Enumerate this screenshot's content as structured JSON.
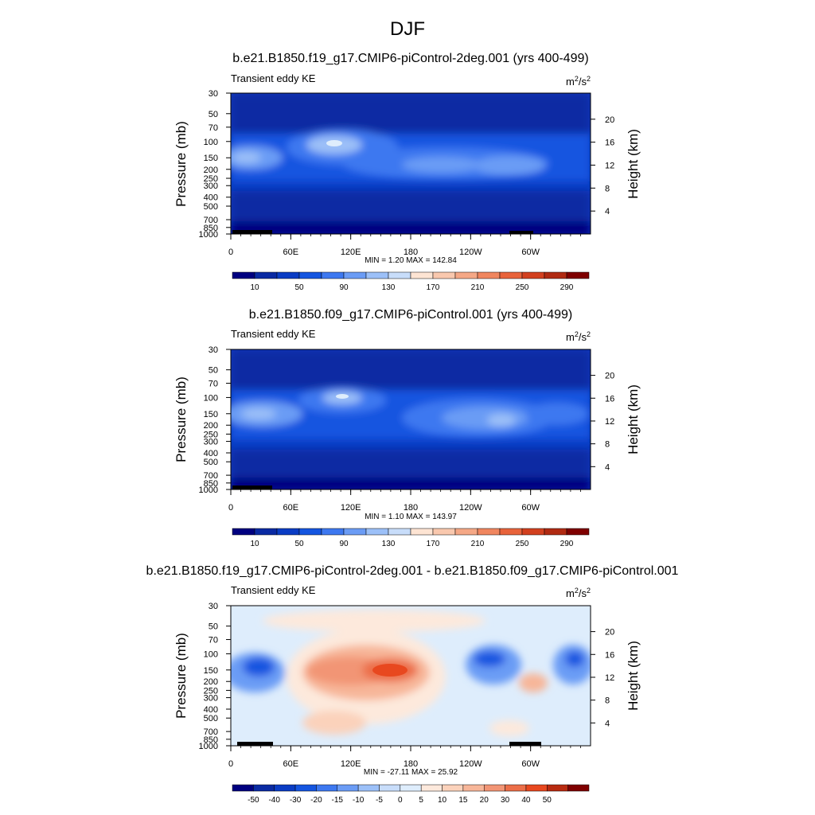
{
  "main_title": "DJF",
  "colors": {
    "abs_scale": [
      "#000080",
      "#0a2aa3",
      "#0a3cc4",
      "#1455e0",
      "#3d78f0",
      "#6b9cf5",
      "#9cc0f8",
      "#c8ddfa",
      "#fde4d3",
      "#f9c8ae",
      "#f5a886",
      "#f0865f",
      "#e8633b",
      "#d2401f",
      "#b02a12",
      "#7f0000"
    ],
    "diff_scale": [
      "#000080",
      "#0a2aa3",
      "#0a3cc4",
      "#1455e0",
      "#3d78f0",
      "#6b9cf5",
      "#9cc0f8",
      "#c8ddfa",
      "#deedfc",
      "#fde9dc",
      "#fbd2bb",
      "#f7b699",
      "#f29575",
      "#ec6e48",
      "#e8481f",
      "#b82a10",
      "#7f0000"
    ]
  },
  "chart_data": [
    {
      "type": "heatmap",
      "title": "b.e21.B1850.f19_g17.CMIP6-piControl-2deg.001 (yrs 400-499)",
      "left_label": "Transient eddy KE",
      "units": "m²/s²",
      "units_base": "m",
      "units_exp1": "2",
      "units_mid": "/s",
      "units_exp2": "2",
      "ylabel": "Pressure (mb)",
      "ylabel_right": "Height (km)",
      "x_ticks": [
        "0",
        "60E",
        "120E",
        "180",
        "120W",
        "60W"
      ],
      "y_ticks": [
        "30",
        "50",
        "70",
        "100",
        "150",
        "200",
        "250",
        "300",
        "400",
        "500",
        "700",
        "850",
        "1000"
      ],
      "y_right_ticks": [
        "20",
        "16",
        "12",
        "8",
        "4"
      ],
      "stats": "MIN =   1.20  MAX = 142.84",
      "colorbar_labels": [
        "10",
        "50",
        "90",
        "130",
        "170",
        "210",
        "250",
        "290"
      ]
    },
    {
      "type": "heatmap",
      "title": "b.e21.B1850.f09_g17.CMIP6-piControl.001 (yrs 400-499)",
      "left_label": "Transient eddy KE",
      "units": "m²/s²",
      "units_base": "m",
      "units_exp1": "2",
      "units_mid": "/s",
      "units_exp2": "2",
      "ylabel": "Pressure (mb)",
      "ylabel_right": "Height (km)",
      "x_ticks": [
        "0",
        "60E",
        "120E",
        "180",
        "120W",
        "60W"
      ],
      "y_ticks": [
        "30",
        "50",
        "70",
        "100",
        "150",
        "200",
        "250",
        "300",
        "400",
        "500",
        "700",
        "850",
        "1000"
      ],
      "y_right_ticks": [
        "20",
        "16",
        "12",
        "8",
        "4"
      ],
      "stats": "MIN =   1.10  MAX = 143.97",
      "colorbar_labels": [
        "10",
        "50",
        "90",
        "130",
        "170",
        "210",
        "250",
        "290"
      ]
    },
    {
      "type": "heatmap",
      "title": "b.e21.B1850.f19_g17.CMIP6-piControl-2deg.001 - b.e21.B1850.f09_g17.CMIP6-piControl.001",
      "left_label": "Transient eddy KE",
      "units": "m²/s²",
      "units_base": "m",
      "units_exp1": "2",
      "units_mid": "/s",
      "units_exp2": "2",
      "ylabel": "Pressure (mb)",
      "ylabel_right": "Height (km)",
      "x_ticks": [
        "0",
        "60E",
        "120E",
        "180",
        "120W",
        "60W"
      ],
      "y_ticks": [
        "30",
        "50",
        "70",
        "100",
        "150",
        "200",
        "250",
        "300",
        "400",
        "500",
        "700",
        "850",
        "1000"
      ],
      "y_right_ticks": [
        "20",
        "16",
        "12",
        "8",
        "4"
      ],
      "stats": "MIN = -27.11  MAX =  25.92",
      "colorbar_labels": [
        "-50",
        "-40",
        "-30",
        "-20",
        "-15",
        "-10",
        "-5",
        "0",
        "5",
        "10",
        "15",
        "20",
        "30",
        "40",
        "50"
      ]
    }
  ]
}
